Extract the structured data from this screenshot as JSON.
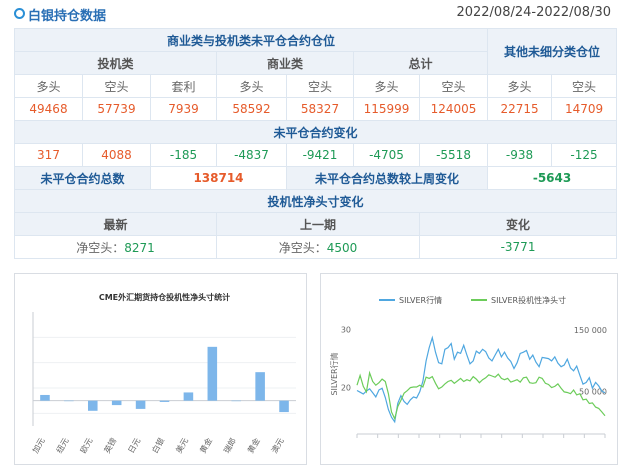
{
  "header": {
    "title": "白银持仓数据",
    "date_range": "2022/08/24-2022/08/30",
    "accent": "#2a8fd6"
  },
  "positions_table": {
    "group_title": "商业类与投机类未平仓合约仓位",
    "other_title": "其他未细分类仓位",
    "sub_groups": [
      "投机类",
      "商业类",
      "总计"
    ],
    "columns": [
      "多头",
      "空头",
      "套利",
      "多头",
      "空头",
      "多头",
      "空头",
      "多头",
      "空头"
    ],
    "values": [
      "49468",
      "57739",
      "7939",
      "58592",
      "58327",
      "115999",
      "124005",
      "22715",
      "14709"
    ]
  },
  "change_section": {
    "title": "未平仓合约变化",
    "values": [
      "317",
      "4088",
      "-185",
      "-4837",
      "-9421",
      "-4705",
      "-5518",
      "-938",
      "-125"
    ]
  },
  "totals": {
    "total_label": "未平仓合约总数",
    "total_value": "138714",
    "weekly_change_label": "未平仓合约总数较上周变化",
    "weekly_change_value": "-5643"
  },
  "net_short": {
    "title": "投机性净头寸变化",
    "headers": [
      "最新",
      "上一期",
      "变化"
    ],
    "latest_label": "净空头：",
    "latest_value": "8271",
    "previous_label": "净空头：",
    "previous_value": "4500",
    "change_value": "-3771"
  },
  "colors": {
    "red": "#e65b2b",
    "green": "#1e9a56",
    "bar": "#7db6ea",
    "silver_line": "#4fa7e0",
    "net_line": "#6ccc5a"
  },
  "chart_data": [
    {
      "type": "bar",
      "title": "CME外汇期货持仓投机性净头寸统计",
      "categories": [
        "加元",
        "纽元",
        "欧元",
        "英镑",
        "日元",
        "白银",
        "美元",
        "黄金",
        "瑞郎",
        "黄金",
        "澳元"
      ],
      "values": [
        0.9,
        0,
        -1.6,
        -0.7,
        -1.3,
        -0.2,
        1.3,
        8.5,
        0,
        4.5,
        -1.8
      ],
      "ylim": [
        -4,
        14
      ],
      "grid": true
    },
    {
      "type": "line",
      "legend": [
        "SILVER行情",
        "SILVER投机性净头寸"
      ],
      "legend_position": "top",
      "left_axis_label": "SILVER行情",
      "left_ticks": [
        "30",
        "20"
      ],
      "right_ticks": [
        "150 000",
        "50 000"
      ],
      "series": [
        {
          "name": "SILVER行情",
          "axis": "left",
          "values": [
            19.5,
            19.2,
            18.9,
            19.4,
            19.8,
            19.1,
            18.4,
            19.6,
            19.9,
            18.3,
            16.2,
            14.9,
            14.1,
            17.3,
            18.6,
            17.6,
            17.1,
            17.9,
            18.4,
            18.2,
            19.3,
            21.1,
            24.6,
            26.9,
            28.6,
            26.1,
            24.3,
            24.1,
            26.6,
            26.9,
            27.6,
            24.9,
            26.1,
            25.9,
            27.3,
            25.6,
            24.1,
            24.6,
            26.3,
            25.9,
            26.6,
            26.2,
            25.1,
            24.6,
            25.6,
            26.6,
            25.3,
            26.1,
            25.1,
            24.5,
            23.3,
            24.3,
            25.9,
            26.1,
            26.4,
            24.9,
            25.6,
            24.4,
            23.6,
            25.2,
            25.1,
            25.0,
            24.6,
            25.3,
            24.2,
            23.6,
            23.9,
            24.9,
            23.4,
            22.9,
            23.7,
            22.1,
            20.6,
            20.9,
            21.7,
            19.9,
            20.9,
            20.3,
            19.4,
            19.1
          ]
        },
        {
          "name": "SILVER投机性净头寸",
          "axis": "right",
          "values": [
            60000,
            76000,
            58000,
            49000,
            80000,
            66000,
            60000,
            64000,
            70000,
            66000,
            46000,
            16000,
            5000,
            25000,
            35000,
            47000,
            51000,
            56000,
            57000,
            57000,
            60000,
            57000,
            73000,
            71000,
            74000,
            63000,
            54000,
            57000,
            62000,
            66000,
            68000,
            63000,
            67000,
            71000,
            66000,
            69000,
            67000,
            74000,
            70000,
            64000,
            69000,
            72000,
            77000,
            75000,
            73000,
            78000,
            71000,
            69000,
            71000,
            65000,
            67000,
            69000,
            65000,
            72000,
            73000,
            64000,
            63000,
            64000,
            73000,
            71000,
            63000,
            61000,
            56000,
            58000,
            62000,
            55000,
            49000,
            48000,
            46000,
            52000,
            44000,
            46000,
            36000,
            37000,
            30000,
            31000,
            24000,
            22000,
            16000,
            10000
          ]
        }
      ]
    }
  ]
}
